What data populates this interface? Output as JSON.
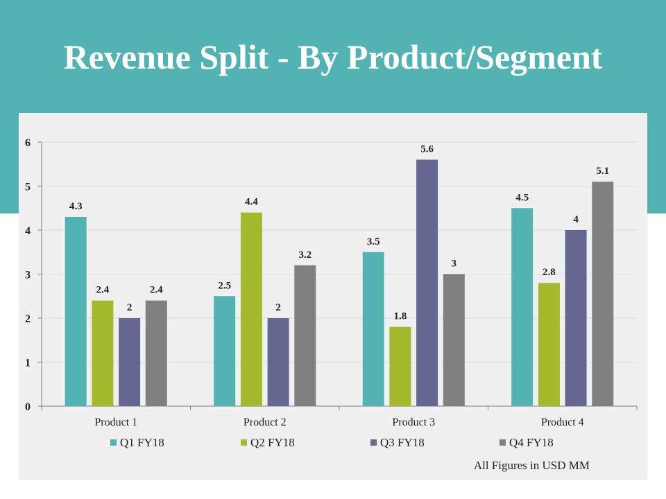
{
  "page": {
    "title": "Revenue Split - By Product/Segment"
  },
  "chart_data": {
    "type": "bar",
    "title": "Revenue Split - By Product/Segment",
    "categories": [
      "Product 1",
      "Product 2",
      "Product 3",
      "Product 4"
    ],
    "series": [
      {
        "name": "Q1 FY18",
        "color": "#52b3b2",
        "values": [
          4.3,
          2.5,
          3.5,
          4.5
        ]
      },
      {
        "name": "Q2 FY18",
        "color": "#a4b92b",
        "values": [
          2.4,
          4.4,
          1.8,
          2.8
        ]
      },
      {
        "name": "Q3 FY18",
        "color": "#666892",
        "values": [
          2,
          2,
          5.6,
          4
        ]
      },
      {
        "name": "Q4 FY18",
        "color": "#808080",
        "values": [
          2.4,
          3.2,
          3,
          5.1
        ]
      }
    ],
    "ylim": [
      0,
      6
    ],
    "yticks": [
      0,
      1,
      2,
      3,
      4,
      5,
      6
    ],
    "grid": true,
    "legend": "bottom",
    "note": "All Figures in USD MM"
  }
}
